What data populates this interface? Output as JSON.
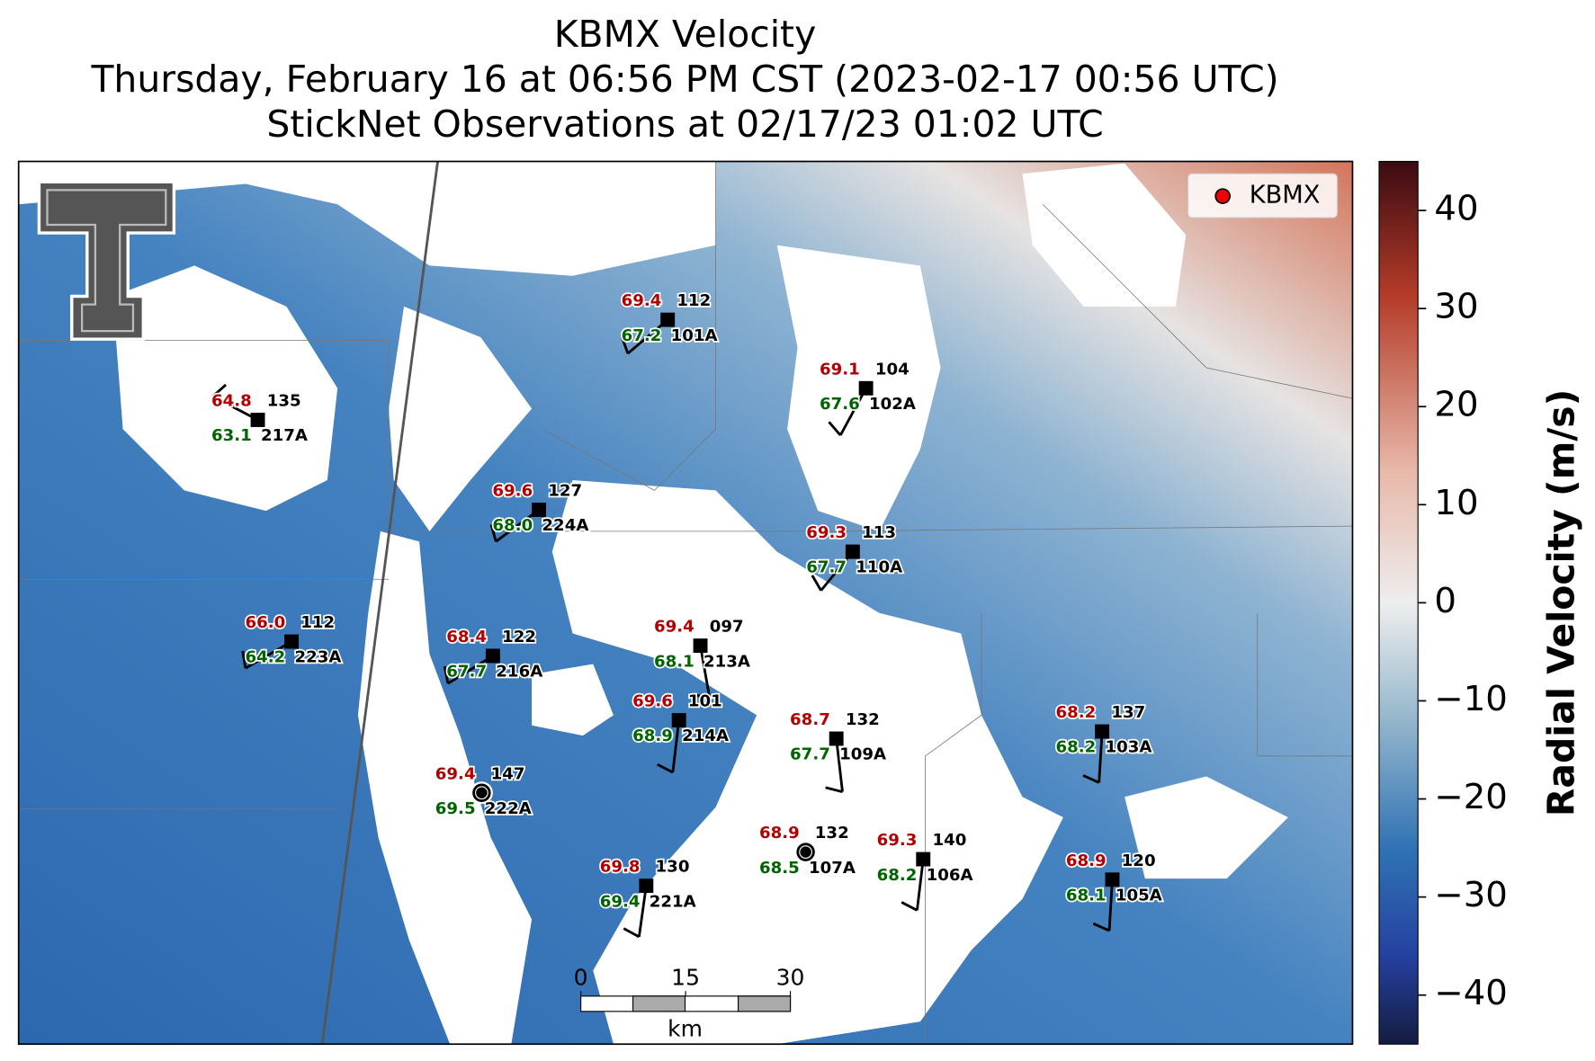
{
  "title": {
    "lines": [
      "KBMX Velocity",
      "Thursday, February 16 at 06:56 PM CST (2023-02-17 00:56 UTC)",
      "StickNet Observations at 02/17/23 01:02 UTC"
    ]
  },
  "legend": {
    "label": "KBMX"
  },
  "stations": [
    {
      "id": "101A",
      "temperature": "69.4",
      "dewpoint": "67.2",
      "value": "112"
    },
    {
      "id": "102A",
      "temperature": "69.1",
      "dewpoint": "67.6",
      "value": "104"
    },
    {
      "id": "217A",
      "temperature": "64.8",
      "dewpoint": "63.1",
      "value": "135"
    },
    {
      "id": "224A",
      "temperature": "69.6",
      "dewpoint": "68.0",
      "value": "127"
    },
    {
      "id": "110A",
      "temperature": "69.3",
      "dewpoint": "67.7",
      "value": "113"
    },
    {
      "id": "223A",
      "temperature": "66.0",
      "dewpoint": "64.2",
      "value": "112"
    },
    {
      "id": "216A",
      "temperature": "68.4",
      "dewpoint": "67.7",
      "value": "122"
    },
    {
      "id": "213A",
      "temperature": "69.4",
      "dewpoint": "68.1",
      "value": "097"
    },
    {
      "id": "214A",
      "temperature": "69.6",
      "dewpoint": "68.9",
      "value": "101"
    },
    {
      "id": "109A",
      "temperature": "68.7",
      "dewpoint": "67.7",
      "value": "132"
    },
    {
      "id": "103A",
      "temperature": "68.2",
      "dewpoint": "68.2",
      "value": "137"
    },
    {
      "id": "222A",
      "temperature": "69.4",
      "dewpoint": "69.5",
      "value": "147"
    },
    {
      "id": "107A",
      "temperature": "68.9",
      "dewpoint": "68.5",
      "value": "132"
    },
    {
      "id": "106A",
      "temperature": "69.3",
      "dewpoint": "68.2",
      "value": "140"
    },
    {
      "id": "221A",
      "temperature": "69.8",
      "dewpoint": "69.4",
      "value": "130"
    },
    {
      "id": "105A",
      "temperature": "68.9",
      "dewpoint": "68.1",
      "value": "120"
    }
  ],
  "colorbar": {
    "label": "Radial Velocity (m/s)",
    "ylim": [
      -45,
      45
    ],
    "yticks": [
      {
        "value": -40,
        "label": "−40"
      },
      {
        "value": -30,
        "label": "−30"
      },
      {
        "value": -20,
        "label": "−20"
      },
      {
        "value": -10,
        "label": "−10"
      },
      0,
      10,
      20,
      30,
      40
    ]
  },
  "scale_bar": {
    "ticks": [
      0,
      15,
      30
    ],
    "unit": "km"
  }
}
